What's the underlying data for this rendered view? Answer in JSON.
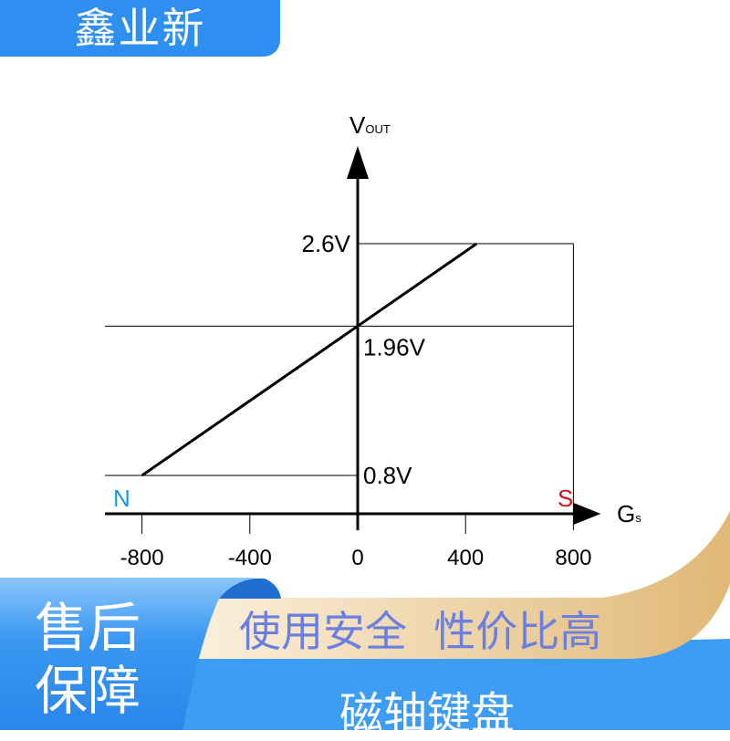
{
  "brand": {
    "name": "鑫业新"
  },
  "chart_data": {
    "type": "line",
    "title": "",
    "xlabel": "Gs",
    "ylabel": "VOUT",
    "x_ticks": [
      "-800",
      "-400",
      "0",
      "400",
      "800"
    ],
    "x_tick_values": [
      -800,
      -400,
      0,
      400,
      800
    ],
    "y_labels": [
      "2.6V",
      "1.96V",
      "0.8V"
    ],
    "y_label_values": [
      2.6,
      1.96,
      0.8
    ],
    "xlim": [
      -920,
      800
    ],
    "series": [
      {
        "x": [
          -800,
          0,
          441
        ],
        "y": [
          0.8,
          1.96,
          2.6
        ]
      }
    ],
    "pole_labels": {
      "negative": "N",
      "positive": "S"
    },
    "colors": {
      "line": "#000000",
      "N": "#1a9ad6",
      "S": "#d0121b"
    },
    "grid": false
  },
  "banner": {
    "left_line1": "售后",
    "left_line2": "保障",
    "slogan": "使用安全  性价比高",
    "product": "磁轴键盘",
    "colors": {
      "blue": "#2f8ff0",
      "gold": "#e6c48a",
      "slogan": "#6a7fe0"
    }
  }
}
